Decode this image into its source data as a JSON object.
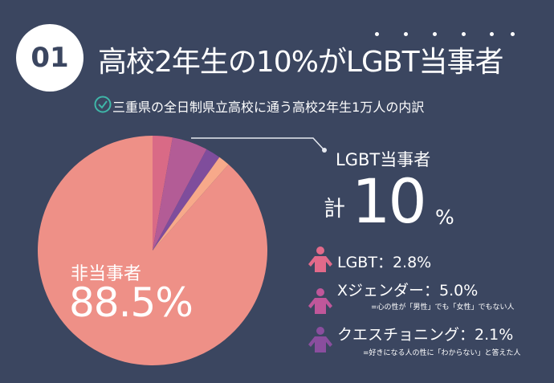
{
  "badge": "01",
  "title": "高校2年生の10%がLGBT当事者",
  "subtitle": "三重県の全日制県立高校に通う高校2年生1万人の内訳",
  "summary": {
    "heading": "LGBT当事者",
    "total_prefix": "計",
    "total_value": "10",
    "total_unit": "%"
  },
  "non_party": {
    "label": "非当事者",
    "value": "88.5%"
  },
  "legend": [
    {
      "label": "LGBT：2.8%",
      "note": "",
      "color": "#e26a8a"
    },
    {
      "label": "Xジェンダー：5.0%",
      "note": "=心の性が「男性」でも「女性」でもない人",
      "color": "#c0579a"
    },
    {
      "label": "クエスチョニング：2.1%",
      "note": "=好きになる人の性に「わからない」と答えた人",
      "color": "#8a4e9e"
    }
  ],
  "chart_data": {
    "type": "pie",
    "title": "高校2年生の10%がLGBT当事者",
    "start": "12 o'clock, clockwise",
    "slices": [
      {
        "name": "LGBT",
        "value": 2.8,
        "color": "#d96a86"
      },
      {
        "name": "Xジェンダー",
        "value": 5.0,
        "color": "#b35c96"
      },
      {
        "name": "クエスチョニング",
        "value": 2.1,
        "color": "#7f4d9c"
      },
      {
        "name": "",
        "value": 1.6,
        "color": "#f7a98a"
      },
      {
        "name": "非当事者",
        "value": 88.5,
        "color": "#ee9087"
      }
    ]
  }
}
